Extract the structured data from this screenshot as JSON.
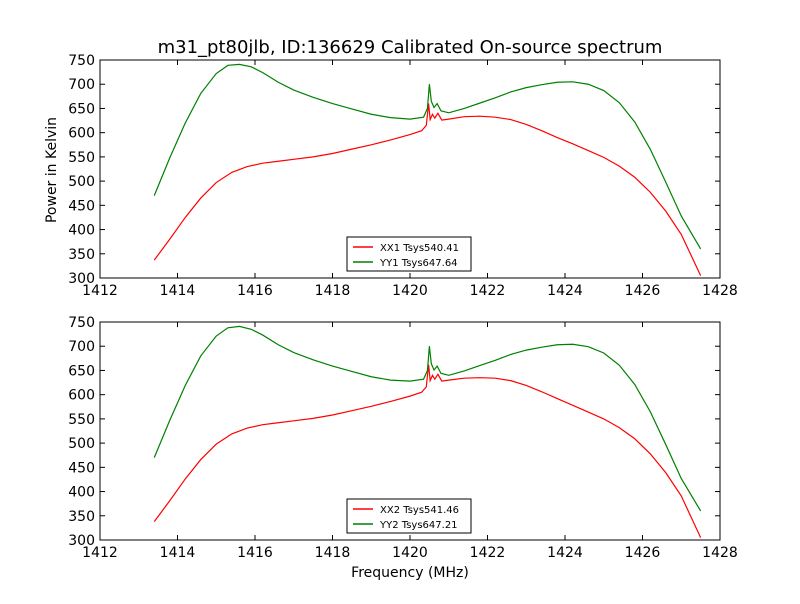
{
  "figure": {
    "title": "m31_pt80jlb, ID:136629 Calibrated On-source spectrum",
    "ylabel": "Power in Kelvin",
    "xlabel": "Frequency (MHz)"
  },
  "chart_data": [
    {
      "type": "line",
      "title": "m31_pt80jlb, ID:136629 Calibrated On-source spectrum",
      "xlabel": "",
      "ylabel": "Power in Kelvin",
      "xlim": [
        1412,
        1428
      ],
      "ylim": [
        300,
        750
      ],
      "xticks": [
        1412,
        1414,
        1416,
        1418,
        1420,
        1422,
        1424,
        1426,
        1428
      ],
      "yticks": [
        300,
        350,
        400,
        450,
        500,
        550,
        600,
        650,
        700,
        750
      ],
      "grid": false,
      "legend": "lower-center",
      "series": [
        {
          "name": "XX1 Tsys540.41",
          "color": "#ff0000",
          "points": [
            [
              1413.4,
              337
            ],
            [
              1413.8,
              380
            ],
            [
              1414.2,
              425
            ],
            [
              1414.6,
              465
            ],
            [
              1415.0,
              497
            ],
            [
              1415.4,
              518
            ],
            [
              1415.8,
              530
            ],
            [
              1416.2,
              537
            ],
            [
              1416.6,
              541
            ],
            [
              1417.0,
              545
            ],
            [
              1417.5,
              550
            ],
            [
              1418.0,
              557
            ],
            [
              1418.5,
              566
            ],
            [
              1419.0,
              575
            ],
            [
              1419.5,
              585
            ],
            [
              1420.0,
              596
            ],
            [
              1420.3,
              604
            ],
            [
              1420.42,
              615
            ],
            [
              1420.48,
              660
            ],
            [
              1420.52,
              627
            ],
            [
              1420.58,
              638
            ],
            [
              1420.64,
              630
            ],
            [
              1420.72,
              640
            ],
            [
              1420.82,
              626
            ],
            [
              1421.0,
              628
            ],
            [
              1421.4,
              633
            ],
            [
              1421.8,
              634
            ],
            [
              1422.2,
              632
            ],
            [
              1422.6,
              627
            ],
            [
              1423.0,
              617
            ],
            [
              1423.4,
              604
            ],
            [
              1423.8,
              590
            ],
            [
              1424.2,
              577
            ],
            [
              1424.6,
              563
            ],
            [
              1425.0,
              549
            ],
            [
              1425.4,
              531
            ],
            [
              1425.8,
              508
            ],
            [
              1426.2,
              477
            ],
            [
              1426.6,
              438
            ],
            [
              1427.0,
              390
            ],
            [
              1427.5,
              305
            ]
          ]
        },
        {
          "name": "YY1 Tsys647.64",
          "color": "#008000",
          "points": [
            [
              1413.4,
              470
            ],
            [
              1413.8,
              548
            ],
            [
              1414.2,
              620
            ],
            [
              1414.6,
              681
            ],
            [
              1415.0,
              722
            ],
            [
              1415.3,
              739
            ],
            [
              1415.6,
              741
            ],
            [
              1415.9,
              736
            ],
            [
              1416.2,
              724
            ],
            [
              1416.6,
              704
            ],
            [
              1417.0,
              688
            ],
            [
              1417.5,
              673
            ],
            [
              1418.0,
              660
            ],
            [
              1418.5,
              649
            ],
            [
              1419.0,
              638
            ],
            [
              1419.5,
              631
            ],
            [
              1420.0,
              628
            ],
            [
              1420.35,
              632
            ],
            [
              1420.45,
              650
            ],
            [
              1420.5,
              700
            ],
            [
              1420.55,
              665
            ],
            [
              1420.62,
              652
            ],
            [
              1420.7,
              660
            ],
            [
              1420.8,
              645
            ],
            [
              1421.0,
              641
            ],
            [
              1421.4,
              650
            ],
            [
              1421.8,
              661
            ],
            [
              1422.2,
              672
            ],
            [
              1422.6,
              684
            ],
            [
              1423.0,
              693
            ],
            [
              1423.4,
              699
            ],
            [
              1423.8,
              704
            ],
            [
              1424.2,
              705
            ],
            [
              1424.6,
              700
            ],
            [
              1425.0,
              687
            ],
            [
              1425.4,
              662
            ],
            [
              1425.8,
              622
            ],
            [
              1426.2,
              566
            ],
            [
              1426.6,
              498
            ],
            [
              1427.0,
              428
            ],
            [
              1427.5,
              360
            ]
          ]
        }
      ]
    },
    {
      "type": "line",
      "title": "",
      "xlabel": "Frequency (MHz)",
      "ylabel": "",
      "xlim": [
        1412,
        1428
      ],
      "ylim": [
        300,
        750
      ],
      "xticks": [
        1412,
        1414,
        1416,
        1418,
        1420,
        1422,
        1424,
        1426,
        1428
      ],
      "yticks": [
        300,
        350,
        400,
        450,
        500,
        550,
        600,
        650,
        700,
        750
      ],
      "grid": false,
      "legend": "lower-center",
      "series": [
        {
          "name": "XX2 Tsys541.46",
          "color": "#ff0000",
          "points": [
            [
              1413.4,
              338
            ],
            [
              1413.8,
              381
            ],
            [
              1414.2,
              426
            ],
            [
              1414.6,
              466
            ],
            [
              1415.0,
              498
            ],
            [
              1415.4,
              519
            ],
            [
              1415.8,
              531
            ],
            [
              1416.2,
              538
            ],
            [
              1416.6,
              542
            ],
            [
              1417.0,
              546
            ],
            [
              1417.5,
              551
            ],
            [
              1418.0,
              558
            ],
            [
              1418.5,
              567
            ],
            [
              1419.0,
              576
            ],
            [
              1419.5,
              586
            ],
            [
              1420.0,
              597
            ],
            [
              1420.3,
              605
            ],
            [
              1420.42,
              616
            ],
            [
              1420.48,
              662
            ],
            [
              1420.52,
              629
            ],
            [
              1420.58,
              640
            ],
            [
              1420.64,
              632
            ],
            [
              1420.72,
              642
            ],
            [
              1420.82,
              628
            ],
            [
              1421.0,
              630
            ],
            [
              1421.4,
              634
            ],
            [
              1421.8,
              635
            ],
            [
              1422.2,
              634
            ],
            [
              1422.6,
              629
            ],
            [
              1423.0,
              619
            ],
            [
              1423.4,
              606
            ],
            [
              1423.8,
              592
            ],
            [
              1424.2,
              578
            ],
            [
              1424.6,
              564
            ],
            [
              1425.0,
              550
            ],
            [
              1425.4,
              532
            ],
            [
              1425.8,
              509
            ],
            [
              1426.2,
              478
            ],
            [
              1426.6,
              439
            ],
            [
              1427.0,
              391
            ],
            [
              1427.5,
              305
            ]
          ]
        },
        {
          "name": "YY2 Tsys647.21",
          "color": "#008000",
          "points": [
            [
              1413.4,
              470
            ],
            [
              1413.8,
              547
            ],
            [
              1414.2,
              619
            ],
            [
              1414.6,
              680
            ],
            [
              1415.0,
              721
            ],
            [
              1415.3,
              738
            ],
            [
              1415.6,
              741
            ],
            [
              1415.9,
              735
            ],
            [
              1416.2,
              723
            ],
            [
              1416.6,
              703
            ],
            [
              1417.0,
              687
            ],
            [
              1417.5,
              672
            ],
            [
              1418.0,
              659
            ],
            [
              1418.5,
              648
            ],
            [
              1419.0,
              637
            ],
            [
              1419.5,
              630
            ],
            [
              1420.0,
              628
            ],
            [
              1420.35,
              632
            ],
            [
              1420.45,
              650
            ],
            [
              1420.5,
              700
            ],
            [
              1420.55,
              664
            ],
            [
              1420.62,
              651
            ],
            [
              1420.7,
              659
            ],
            [
              1420.8,
              644
            ],
            [
              1421.0,
              640
            ],
            [
              1421.4,
              649
            ],
            [
              1421.8,
              660
            ],
            [
              1422.2,
              671
            ],
            [
              1422.6,
              683
            ],
            [
              1423.0,
              692
            ],
            [
              1423.4,
              698
            ],
            [
              1423.8,
              703
            ],
            [
              1424.2,
              704
            ],
            [
              1424.6,
              699
            ],
            [
              1425.0,
              686
            ],
            [
              1425.4,
              661
            ],
            [
              1425.8,
              621
            ],
            [
              1426.2,
              565
            ],
            [
              1426.6,
              497
            ],
            [
              1427.0,
              427
            ],
            [
              1427.5,
              360
            ]
          ]
        }
      ]
    }
  ]
}
